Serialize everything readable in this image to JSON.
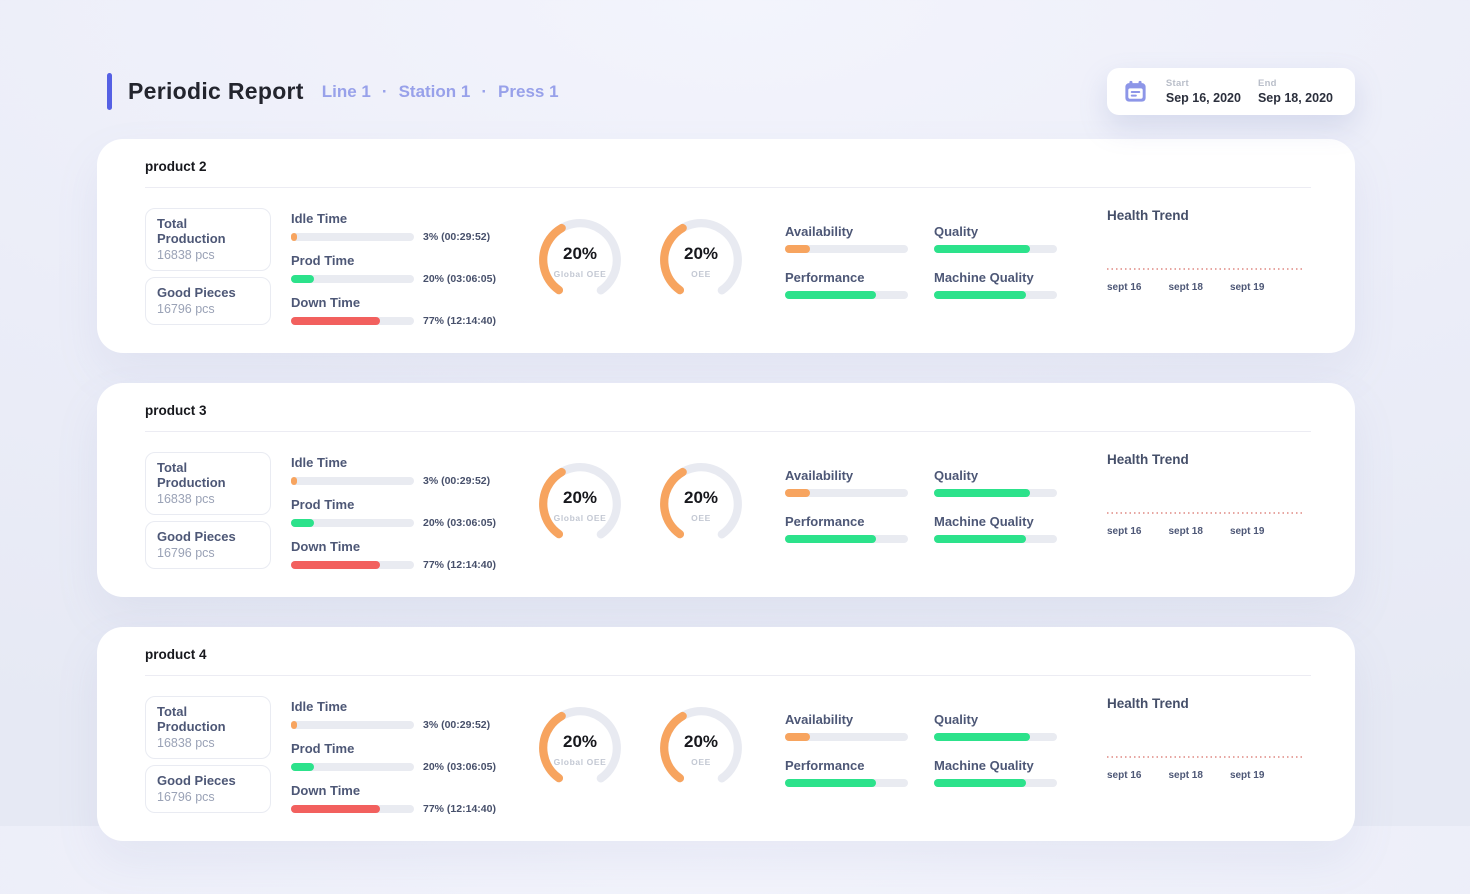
{
  "header": {
    "title": "Periodic Report",
    "breadcrumb": {
      "separator": "·",
      "items": [
        "Line 1",
        "Station 1",
        "Press 1"
      ]
    },
    "date_range": {
      "icon": "calendar-icon",
      "start_label": "Start",
      "start_value": "Sep 16, 2020",
      "end_label": "End",
      "end_value": "Sep 18, 2020"
    }
  },
  "colors": {
    "accent_indigo": "#5560e4",
    "breadcrumb_purple": "#98a1ea",
    "calendar_icon": "#8d96e8",
    "bar_track_gray": "#e9ebf1",
    "gauge_track_gray": "#e8eaf1",
    "orange": "#f7a45f",
    "green": "#2ce28b",
    "red": "#f2605e",
    "trend_dotted_red": "#e7a6a1"
  },
  "products": [
    {
      "name": "product 2",
      "stats": [
        {
          "label": "Total Production",
          "value": "16838 pcs"
        },
        {
          "label": "Good Pieces",
          "value": "16796 pcs"
        }
      ],
      "times": [
        {
          "label": "Idle Time",
          "value": "3% (00:29:52)",
          "pct": 5,
          "color": "#f7a45f"
        },
        {
          "label": "Prod Time",
          "value": "20% (03:06:05)",
          "pct": 19,
          "color": "#2ce28b"
        },
        {
          "label": "Down Time",
          "value": "77% (12:14:40)",
          "pct": 72,
          "color": "#f2605e"
        }
      ],
      "gauges": [
        {
          "value": "20%",
          "label": "Global OEE",
          "arc_deg": 115,
          "color": "#f7a45f"
        },
        {
          "value": "20%",
          "label": "OEE",
          "arc_deg": 115,
          "color": "#f7a45f"
        }
      ],
      "metrics": [
        {
          "label": "Availability",
          "pct": 20,
          "color": "#f7a45f"
        },
        {
          "label": "Performance",
          "pct": 74,
          "color": "#2ce28b"
        },
        {
          "label": "Quality",
          "pct": 78,
          "color": "#2ce28b"
        },
        {
          "label": "Machine Quality",
          "pct": 75,
          "color": "#2ce28b"
        }
      ],
      "health_trend": {
        "title": "Health Trend",
        "line_color": "#e7a6a1",
        "dates": [
          "sept 16",
          "sept 18",
          "sept 19"
        ]
      }
    },
    {
      "name": "product 3",
      "stats": [
        {
          "label": "Total Production",
          "value": "16838 pcs"
        },
        {
          "label": "Good Pieces",
          "value": "16796 pcs"
        }
      ],
      "times": [
        {
          "label": "Idle Time",
          "value": "3% (00:29:52)",
          "pct": 5,
          "color": "#f7a45f"
        },
        {
          "label": "Prod Time",
          "value": "20% (03:06:05)",
          "pct": 19,
          "color": "#2ce28b"
        },
        {
          "label": "Down Time",
          "value": "77% (12:14:40)",
          "pct": 72,
          "color": "#f2605e"
        }
      ],
      "gauges": [
        {
          "value": "20%",
          "label": "Global OEE",
          "arc_deg": 115,
          "color": "#f7a45f"
        },
        {
          "value": "20%",
          "label": "OEE",
          "arc_deg": 115,
          "color": "#f7a45f"
        }
      ],
      "metrics": [
        {
          "label": "Availability",
          "pct": 20,
          "color": "#f7a45f"
        },
        {
          "label": "Performance",
          "pct": 74,
          "color": "#2ce28b"
        },
        {
          "label": "Quality",
          "pct": 78,
          "color": "#2ce28b"
        },
        {
          "label": "Machine Quality",
          "pct": 75,
          "color": "#2ce28b"
        }
      ],
      "health_trend": {
        "title": "Health Trend",
        "line_color": "#e7a6a1",
        "dates": [
          "sept 16",
          "sept 18",
          "sept 19"
        ]
      }
    },
    {
      "name": "product 4",
      "stats": [
        {
          "label": "Total Production",
          "value": "16838 pcs"
        },
        {
          "label": "Good Pieces",
          "value": "16796 pcs"
        }
      ],
      "times": [
        {
          "label": "Idle Time",
          "value": "3% (00:29:52)",
          "pct": 5,
          "color": "#f7a45f"
        },
        {
          "label": "Prod Time",
          "value": "20% (03:06:05)",
          "pct": 19,
          "color": "#2ce28b"
        },
        {
          "label": "Down Time",
          "value": "77% (12:14:40)",
          "pct": 72,
          "color": "#f2605e"
        }
      ],
      "gauges": [
        {
          "value": "20%",
          "label": "Global OEE",
          "arc_deg": 115,
          "color": "#f7a45f"
        },
        {
          "value": "20%",
          "label": "OEE",
          "arc_deg": 115,
          "color": "#f7a45f"
        }
      ],
      "metrics": [
        {
          "label": "Availability",
          "pct": 20,
          "color": "#f7a45f"
        },
        {
          "label": "Performance",
          "pct": 74,
          "color": "#2ce28b"
        },
        {
          "label": "Quality",
          "pct": 78,
          "color": "#2ce28b"
        },
        {
          "label": "Machine Quality",
          "pct": 75,
          "color": "#2ce28b"
        }
      ],
      "health_trend": {
        "title": "Health Trend",
        "line_color": "#e7a6a1",
        "dates": [
          "sept 16",
          "sept 18",
          "sept 19"
        ]
      }
    }
  ]
}
